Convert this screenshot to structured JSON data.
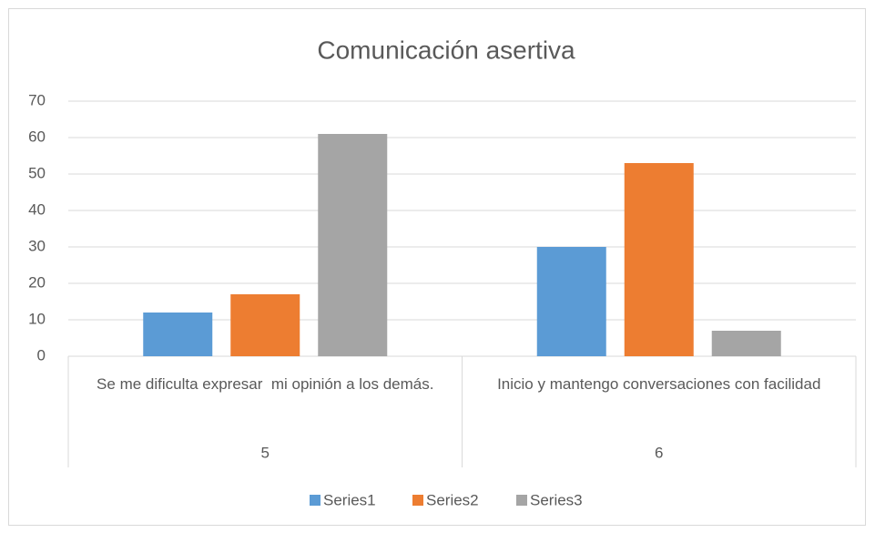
{
  "chart_data": {
    "type": "bar",
    "title": "Comunicación asertiva",
    "categories": [
      "Se me dificulta expresar  mi opinión a los demás.",
      "Inicio y mantengo conversaciones con facilidad"
    ],
    "category_groups": [
      "5",
      "6"
    ],
    "series": [
      {
        "name": "Series1",
        "color": "#5b9bd5",
        "values": [
          12,
          30
        ]
      },
      {
        "name": "Series2",
        "color": "#ed7d31",
        "values": [
          17,
          53
        ]
      },
      {
        "name": "Series3",
        "color": "#a5a5a5",
        "values": [
          61,
          7
        ]
      }
    ],
    "ylim": [
      0,
      70
    ],
    "yticks": [
      0,
      10,
      20,
      30,
      40,
      50,
      60,
      70
    ],
    "grid": true,
    "legend": "bottom"
  }
}
